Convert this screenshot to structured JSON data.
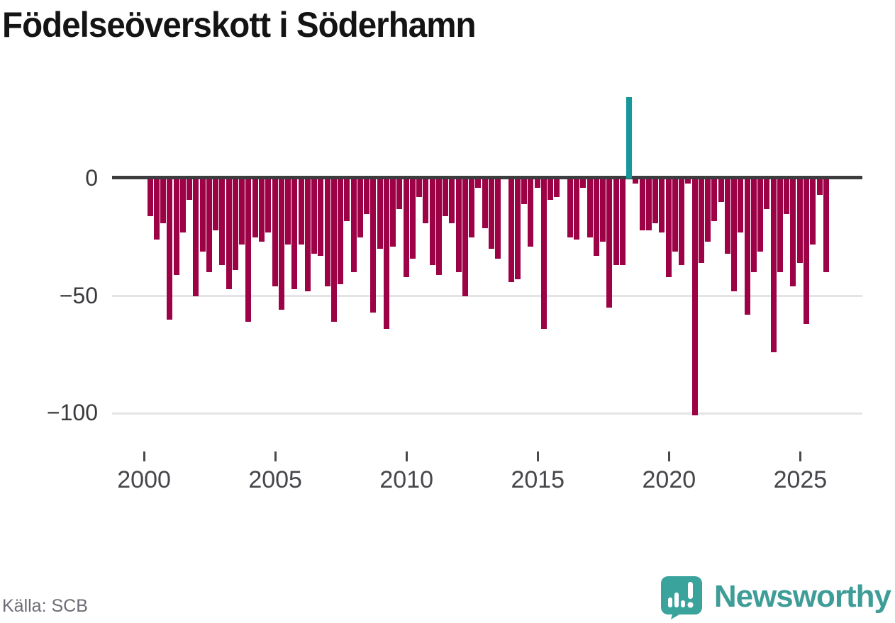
{
  "title": "Födelseöverskott i Söderhamn",
  "footer": {
    "source_label": "Källa: SCB",
    "brand": "Newsworthy"
  },
  "chart_data": {
    "type": "bar",
    "title": "Födelseöverskott i Söderhamn",
    "frequency": "quarterly",
    "x_tick_labels": [
      "2000",
      "2005",
      "2010",
      "2015",
      "2020",
      "2025"
    ],
    "y_ticks": [
      0,
      -50,
      -100
    ],
    "y_tick_labels": [
      "0",
      "−50",
      "−100"
    ],
    "ylim": [
      -110,
      40
    ],
    "grid": "horizontal",
    "legend": "none",
    "colors": {
      "negative": "#9c0245",
      "positive": "#16989a",
      "axis": "#3d3d3f",
      "gridline": "#e4e4e7"
    },
    "series_by_year": [
      {
        "year": 2000,
        "q": [
          -16,
          -26,
          -19,
          -60
        ]
      },
      {
        "year": 2001,
        "q": [
          -41,
          -23,
          -9,
          -50
        ]
      },
      {
        "year": 2002,
        "q": [
          -31,
          -40,
          -22,
          -37
        ]
      },
      {
        "year": 2003,
        "q": [
          -47,
          -39,
          -28,
          -61
        ]
      },
      {
        "year": 2004,
        "q": [
          -25,
          -27,
          -23,
          -46
        ]
      },
      {
        "year": 2005,
        "q": [
          -56,
          -28,
          -47,
          -28
        ]
      },
      {
        "year": 2006,
        "q": [
          -48,
          -32,
          -33,
          -46
        ]
      },
      {
        "year": 2007,
        "q": [
          -61,
          -45,
          -18,
          -40
        ]
      },
      {
        "year": 2008,
        "q": [
          -25,
          -15,
          -57,
          -30
        ]
      },
      {
        "year": 2009,
        "q": [
          -64,
          -29,
          -13,
          -42
        ]
      },
      {
        "year": 2010,
        "q": [
          -34,
          -8,
          -19,
          -37
        ]
      },
      {
        "year": 2011,
        "q": [
          -41,
          -16,
          -19,
          -40
        ]
      },
      {
        "year": 2012,
        "q": [
          -50,
          -25,
          -4,
          -21
        ]
      },
      {
        "year": 2013,
        "q": [
          -30,
          -34,
          0,
          -44
        ]
      },
      {
        "year": 2014,
        "q": [
          -43,
          -11,
          -29,
          -4
        ]
      },
      {
        "year": 2015,
        "q": [
          -64,
          -9,
          -8,
          0
        ]
      },
      {
        "year": 2016,
        "q": [
          -25,
          -26,
          -4,
          -25
        ]
      },
      {
        "year": 2017,
        "q": [
          -33,
          -27,
          -55,
          -37
        ]
      },
      {
        "year": 2018,
        "q": [
          -37,
          34,
          -2,
          -22
        ]
      },
      {
        "year": 2019,
        "q": [
          -22,
          -19,
          -23,
          -42
        ]
      },
      {
        "year": 2020,
        "q": [
          -31,
          -37,
          -2,
          -101
        ]
      },
      {
        "year": 2021,
        "q": [
          -36,
          -27,
          -18,
          -10
        ]
      },
      {
        "year": 2022,
        "q": [
          -32,
          -48,
          -23,
          -58
        ]
      },
      {
        "year": 2023,
        "q": [
          -40,
          -31,
          -13,
          -74
        ]
      },
      {
        "year": 2024,
        "q": [
          -40,
          -15,
          -46,
          -36
        ]
      },
      {
        "year": 2025,
        "q": [
          -62,
          -28,
          -7,
          -40
        ]
      }
    ]
  }
}
